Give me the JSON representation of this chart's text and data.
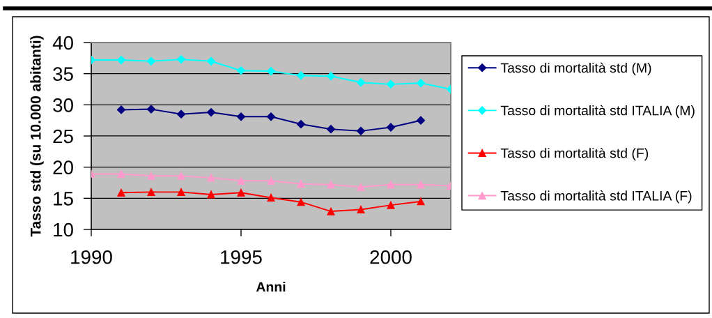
{
  "chart_data": {
    "type": "line",
    "xlabel": "Anni",
    "ylabel": "Tasso std (su 10.000 abitanti)",
    "x": [
      1990,
      1991,
      1992,
      1993,
      1994,
      1995,
      1996,
      1997,
      1998,
      1999,
      2000,
      2001,
      2002
    ],
    "series": [
      {
        "name": "Tasso di mortalità std (M)",
        "color": "#000080",
        "marker": "diamond",
        "values": [
          null,
          29.2,
          29.3,
          28.5,
          28.8,
          28.1,
          28.1,
          26.9,
          26.1,
          25.8,
          26.4,
          27.5,
          null
        ]
      },
      {
        "name": "Tasso di mortalità std ITALIA (M)",
        "color": "#00ffff",
        "marker": "diamond",
        "values": [
          37.2,
          37.2,
          37.0,
          37.3,
          37.0,
          35.5,
          35.4,
          34.7,
          34.6,
          33.6,
          33.3,
          33.5,
          32.5
        ]
      },
      {
        "name": "Tasso di mortalità std (F)",
        "color": "#ff0000",
        "marker": "triangle",
        "values": [
          null,
          15.9,
          16.0,
          16.0,
          15.6,
          15.9,
          15.1,
          14.4,
          12.9,
          13.2,
          13.9,
          14.5,
          null
        ]
      },
      {
        "name": "Tasso di mortalità std ITALIA (F)",
        "color": "#ff99cc",
        "marker": "triangle",
        "values": [
          18.9,
          18.9,
          18.6,
          18.6,
          18.3,
          17.8,
          17.8,
          17.3,
          17.2,
          16.8,
          17.2,
          17.2,
          17.0
        ]
      }
    ],
    "xlim": [
      1990,
      2002
    ],
    "xticks": [
      1990,
      1995,
      2000
    ],
    "ylim": [
      10,
      40
    ],
    "yticks": [
      10,
      15,
      20,
      25,
      30,
      35,
      40
    ],
    "grid": "y",
    "legend": "right",
    "line_style": "solid"
  }
}
